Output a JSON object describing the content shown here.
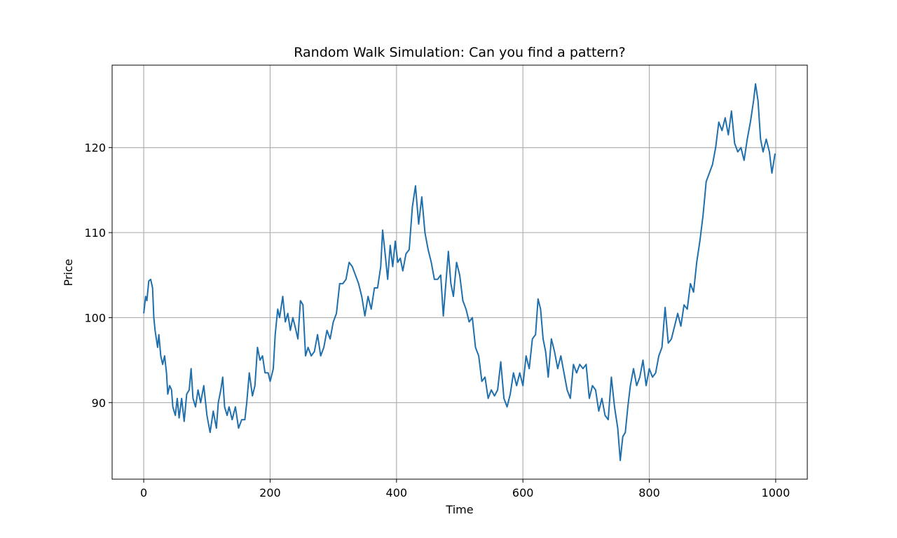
{
  "chart_data": {
    "type": "line",
    "title": "Random Walk Simulation: Can you find a pattern?",
    "xlabel": "Time",
    "ylabel": "Price",
    "xlim": [
      -50,
      1050
    ],
    "ylim": [
      81,
      129.7
    ],
    "xticks": [
      0,
      200,
      400,
      600,
      800,
      1000
    ],
    "yticks": [
      90,
      100,
      110,
      120
    ],
    "grid": true,
    "x": [
      0,
      3,
      5,
      8,
      11,
      14,
      16,
      18,
      20,
      22,
      24,
      27,
      30,
      33,
      36,
      38,
      41,
      44,
      46,
      50,
      53,
      56,
      60,
      64,
      68,
      72,
      75,
      78,
      82,
      86,
      90,
      95,
      100,
      105,
      110,
      115,
      118,
      122,
      125,
      128,
      132,
      135,
      140,
      145,
      150,
      155,
      160,
      163,
      167,
      172,
      176,
      180,
      184,
      188,
      192,
      197,
      200,
      205,
      208,
      212,
      215,
      220,
      224,
      228,
      232,
      236,
      240,
      244,
      248,
      252,
      256,
      260,
      265,
      270,
      275,
      280,
      285,
      290,
      295,
      300,
      305,
      310,
      315,
      320,
      325,
      330,
      335,
      340,
      345,
      350,
      355,
      360,
      365,
      370,
      375,
      378,
      382,
      386,
      390,
      394,
      398,
      402,
      406,
      410,
      415,
      420,
      425,
      430,
      435,
      440,
      445,
      450,
      455,
      460,
      465,
      470,
      474,
      478,
      482,
      486,
      490,
      495,
      500,
      505,
      510,
      515,
      520,
      525,
      530,
      535,
      540,
      545,
      550,
      555,
      560,
      565,
      570,
      575,
      580,
      585,
      590,
      595,
      600,
      605,
      610,
      615,
      620,
      624,
      628,
      632,
      636,
      640,
      645,
      650,
      655,
      660,
      665,
      670,
      675,
      680,
      685,
      690,
      695,
      700,
      705,
      710,
      715,
      720,
      725,
      730,
      735,
      740,
      745,
      750,
      754,
      758,
      762,
      766,
      770,
      775,
      780,
      785,
      790,
      795,
      800,
      805,
      810,
      815,
      820,
      825,
      830,
      835,
      840,
      845,
      850,
      855,
      860,
      865,
      870,
      875,
      880,
      885,
      890,
      895,
      900,
      905,
      910,
      915,
      920,
      925,
      930,
      935,
      940,
      945,
      950,
      955,
      960,
      965,
      968,
      972,
      976,
      980,
      985,
      990,
      994,
      999
    ],
    "series": [
      {
        "name": "Price",
        "color": "#1f6fad",
        "values": [
          100.5,
          102.5,
          102,
          104.3,
          104.5,
          103.5,
          100,
          98.5,
          97.5,
          96.5,
          98,
          95.5,
          94.5,
          95.5,
          93.5,
          91,
          92,
          91.5,
          89.5,
          88.5,
          90.5,
          88.2,
          90.5,
          87.8,
          91,
          91.5,
          94,
          90.5,
          89.5,
          91.5,
          90,
          92,
          88.5,
          86.5,
          89,
          87,
          90,
          91.5,
          93,
          89.5,
          88.5,
          89.5,
          88,
          89.5,
          87,
          88,
          88,
          90,
          93.5,
          90.8,
          92,
          96.5,
          95,
          95.5,
          93.5,
          93.5,
          92.5,
          94,
          98,
          101,
          100,
          102.5,
          99.5,
          100.5,
          98.5,
          100,
          98.8,
          97.5,
          102,
          101.5,
          95.5,
          96.5,
          95.5,
          96,
          98,
          95.5,
          96.5,
          98.5,
          97.5,
          99.5,
          100.5,
          104,
          104,
          104.5,
          106.5,
          106,
          105,
          104,
          102.5,
          100.2,
          102.5,
          101,
          103.5,
          103.5,
          106,
          110.3,
          107.5,
          104.5,
          108.5,
          106,
          109,
          106.5,
          107,
          105.5,
          107.5,
          108,
          113,
          115.5,
          111,
          114.2,
          110,
          108,
          106.5,
          104.5,
          104.5,
          105,
          100.2,
          104,
          107.8,
          104,
          102.5,
          106.5,
          105,
          102,
          101,
          99.5,
          100,
          96.5,
          95.5,
          92.5,
          93,
          90.5,
          91.5,
          90.8,
          91.5,
          94.8,
          90.5,
          89.5,
          91,
          93.5,
          92,
          93.5,
          92,
          95.5,
          94,
          97.5,
          98,
          102.2,
          101,
          97.5,
          96,
          93,
          97.5,
          96,
          94,
          95.5,
          93.5,
          91.5,
          90.5,
          94.5,
          93.5,
          94.5,
          94,
          94.5,
          90.5,
          92,
          91.5,
          89,
          90.5,
          88.5,
          88,
          93,
          89.5,
          87,
          83.2,
          86,
          86.5,
          89.5,
          92,
          94,
          92,
          93,
          95,
          92,
          94,
          93,
          93.5,
          95.5,
          96.5,
          101.2,
          97,
          97.5,
          99,
          100.5,
          99,
          101.5,
          101,
          104,
          103,
          106.5,
          109,
          112,
          116,
          117,
          118,
          120,
          123,
          122,
          123.5,
          121.5,
          124.3,
          120.5,
          119.5,
          120,
          118.5,
          121,
          123,
          125.5,
          127.5,
          125.5,
          121,
          119.5,
          121,
          119.5,
          117,
          119.3
        ]
      }
    ]
  }
}
